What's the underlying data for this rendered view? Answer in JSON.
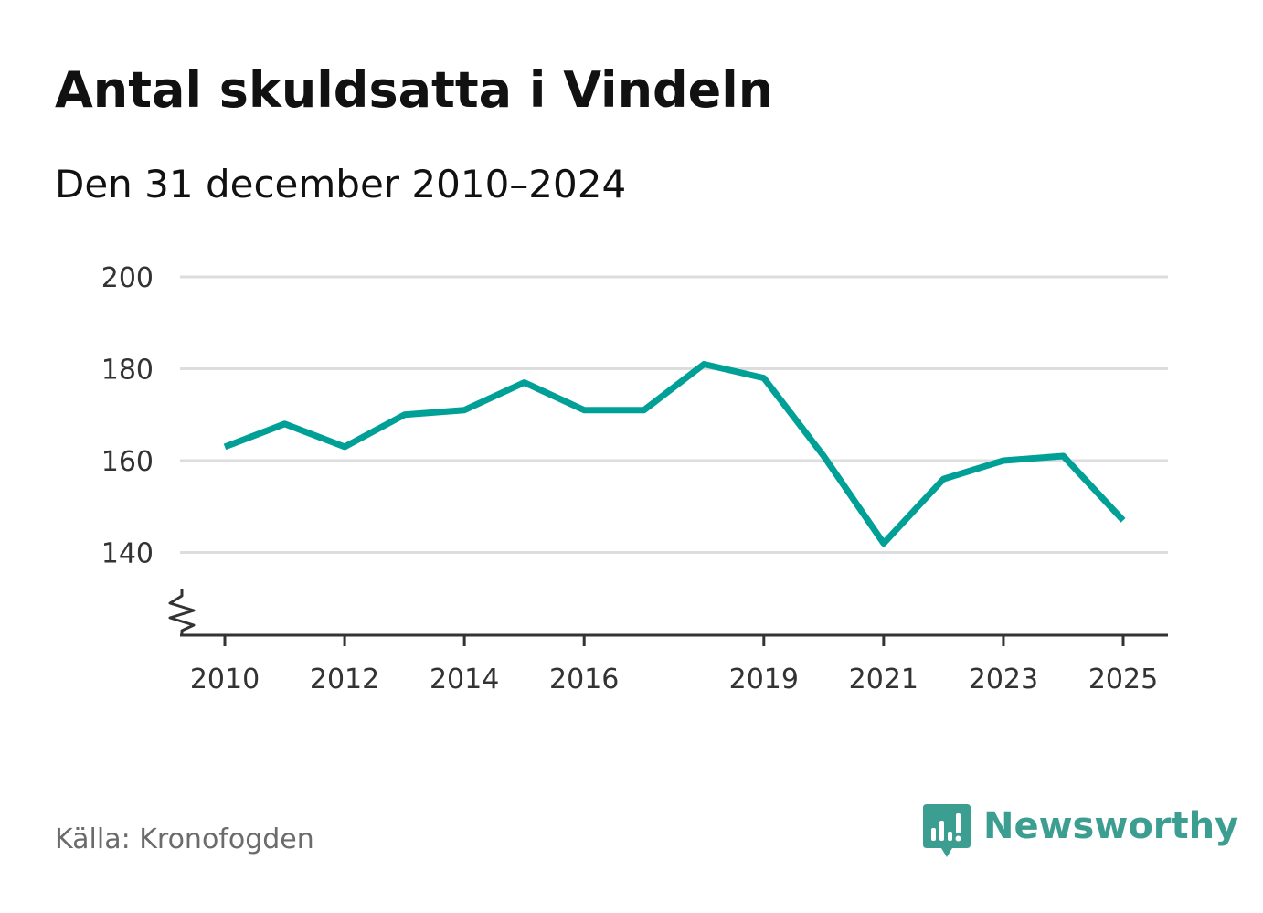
{
  "header": {
    "title": "Antal skuldsatta i Vindeln",
    "subtitle": "Den 31 december 2010–2024"
  },
  "footer": {
    "source": "Källa: Kronofogden",
    "brand": "Newsworthy"
  },
  "colors": {
    "line": "#00A096",
    "grid": "#dddddd",
    "axis": "#333333",
    "brand": "#3B9E91"
  },
  "chart_data": {
    "type": "line",
    "title": "Antal skuldsatta i Vindeln",
    "subtitle": "Den 31 december 2010–2024",
    "xlabel": "",
    "ylabel": "",
    "x": [
      2010,
      2011,
      2012,
      2013,
      2014,
      2015,
      2016,
      2017,
      2018,
      2019,
      2020,
      2021,
      2022,
      2023,
      2024,
      2025
    ],
    "values": [
      163,
      168,
      163,
      170,
      171,
      177,
      171,
      171,
      181,
      178,
      161,
      142,
      156,
      160,
      161,
      147
    ],
    "xticks": [
      2010,
      2012,
      2014,
      2016,
      2019,
      2021,
      2023,
      2025
    ],
    "yticks": [
      140,
      160,
      180,
      200
    ],
    "ylim": [
      122,
      200
    ],
    "xlim": [
      2009.25,
      2025.75
    ],
    "grid": true,
    "axis_break": true,
    "legend": "none"
  }
}
